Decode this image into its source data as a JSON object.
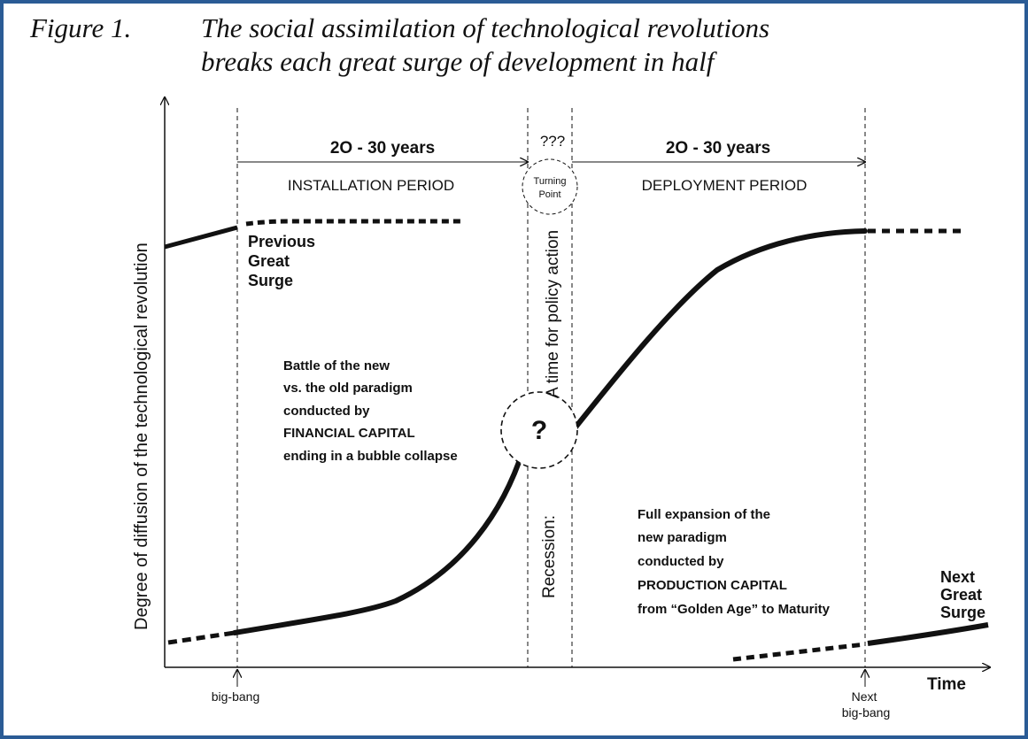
{
  "caption": {
    "label": "Figure 1.",
    "title_line1": "The social assimilation of technological revolutions",
    "title_line2": "breaks each great surge of development in half"
  },
  "axes": {
    "y_label": "Degree of diffusion of the technological revolution",
    "x_label": "Time"
  },
  "periods": {
    "installation_duration": "2O - 30 years",
    "installation_name": "INSTALLATION PERIOD",
    "turning_question": "???",
    "turning_point_line1": "Turning",
    "turning_point_line2": "Point",
    "deployment_duration": "2O - 30 years",
    "deployment_name": "DEPLOYMENT PERIOD"
  },
  "labels": {
    "previous_surge": [
      "Previous",
      "Great",
      "Surge"
    ],
    "battle": [
      "Battle of the new",
      "vs. the old paradigm",
      "conducted by",
      "FINANCIAL CAPITAL",
      "ending in a bubble collapse"
    ],
    "policy_time": "A time for policy action",
    "recession": "Recession:",
    "question": "?",
    "expansion": [
      "Full expansion of the",
      "new paradigm",
      "conducted by",
      "PRODUCTION  CAPITAL",
      "from “Golden Age” to Maturity"
    ],
    "next_surge": [
      "Next",
      "Great",
      "Surge"
    ],
    "big_bang": "big-bang",
    "next_big_bang": [
      "Next",
      "big-bang"
    ]
  },
  "colors": {
    "frame": "#2a5b95",
    "ink": "#111111"
  }
}
